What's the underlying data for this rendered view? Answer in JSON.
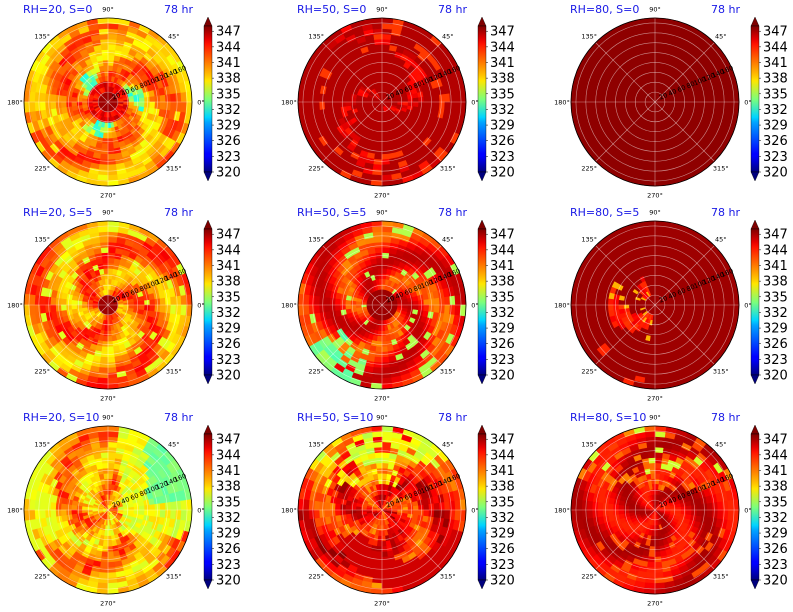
{
  "figure": {
    "layout": "3x3"
  },
  "chart_data": [
    {
      "type": "heatmap",
      "title_left": "RH=20, S=0",
      "title_right": "78 hr",
      "regime": "vortex",
      "angular_ticks": [
        "0°",
        "45°",
        "90°",
        "135°",
        "180°",
        "225°",
        "270°",
        "315°"
      ],
      "radial_ticks": [
        "20",
        "40",
        "60",
        "80",
        "100",
        "120",
        "140",
        "160"
      ],
      "colorbar": {
        "ticks": [
          "320",
          "323",
          "326",
          "329",
          "332",
          "335",
          "338",
          "341",
          "344",
          "347"
        ],
        "vmin": 320,
        "vmax": 348,
        "colormap": "jet",
        "extend": "both"
      }
    },
    {
      "type": "heatmap",
      "title_left": "RH=50, S=0",
      "title_right": "78 hr",
      "regime": "saturated_low",
      "angular_ticks": [
        "0°",
        "45°",
        "90°",
        "135°",
        "180°",
        "225°",
        "270°",
        "315°"
      ],
      "radial_ticks": [
        "20",
        "40",
        "60",
        "80",
        "100",
        "120",
        "140",
        "160"
      ],
      "colorbar": {
        "ticks": [
          "320",
          "323",
          "326",
          "329",
          "332",
          "335",
          "338",
          "341",
          "344",
          "347"
        ],
        "vmin": 320,
        "vmax": 348,
        "colormap": "jet",
        "extend": "both"
      }
    },
    {
      "type": "heatmap",
      "title_left": "RH=80, S=0",
      "title_right": "78 hr",
      "regime": "saturated",
      "angular_ticks": [
        "0°",
        "45°",
        "90°",
        "135°",
        "180°",
        "225°",
        "270°",
        "315°"
      ],
      "radial_ticks": [
        "20",
        "40",
        "60",
        "80",
        "100",
        "120",
        "140",
        "160"
      ],
      "colorbar": {
        "ticks": [
          "320",
          "323",
          "326",
          "329",
          "332",
          "335",
          "338",
          "341",
          "344",
          "347"
        ],
        "vmin": 320,
        "vmax": 348,
        "colormap": "jet",
        "extend": "both"
      }
    },
    {
      "type": "heatmap",
      "title_left": "RH=20, S=5",
      "title_right": "78 hr",
      "regime": "vortex_warm",
      "angular_ticks": [
        "0°",
        "45°",
        "90°",
        "135°",
        "180°",
        "225°",
        "270°",
        "315°"
      ],
      "radial_ticks": [
        "20",
        "40",
        "60",
        "80",
        "100",
        "120",
        "140",
        "160"
      ],
      "colorbar": {
        "ticks": [
          "320",
          "323",
          "326",
          "329",
          "332",
          "335",
          "338",
          "341",
          "344",
          "347"
        ],
        "vmin": 320,
        "vmax": 348,
        "colormap": "jet",
        "extend": "both"
      }
    },
    {
      "type": "heatmap",
      "title_left": "RH=50, S=5",
      "title_right": "78 hr",
      "regime": "vortex_mixed",
      "angular_ticks": [
        "0°",
        "45°",
        "90°",
        "135°",
        "180°",
        "225°",
        "270°",
        "315°"
      ],
      "radial_ticks": [
        "20",
        "40",
        "60",
        "80",
        "100",
        "120",
        "140",
        "160"
      ],
      "colorbar": {
        "ticks": [
          "320",
          "323",
          "326",
          "329",
          "332",
          "335",
          "338",
          "341",
          "344",
          "347"
        ],
        "vmin": 320,
        "vmax": 348,
        "colormap": "jet",
        "extend": "both"
      }
    },
    {
      "type": "heatmap",
      "title_left": "RH=80, S=5",
      "title_right": "78 hr",
      "regime": "saturated_patch",
      "angular_ticks": [
        "0°",
        "45°",
        "90°",
        "135°",
        "180°",
        "225°",
        "270°",
        "315°"
      ],
      "radial_ticks": [
        "20",
        "40",
        "60",
        "80",
        "100",
        "120",
        "140",
        "160"
      ],
      "colorbar": {
        "ticks": [
          "320",
          "323",
          "326",
          "329",
          "332",
          "335",
          "338",
          "341",
          "344",
          "347"
        ],
        "vmin": 320,
        "vmax": 348,
        "colormap": "jet",
        "extend": "both"
      }
    },
    {
      "type": "heatmap",
      "title_left": "RH=20, S=10",
      "title_right": "78 hr",
      "regime": "cool_sheared",
      "angular_ticks": [
        "0°",
        "45°",
        "90°",
        "135°",
        "180°",
        "225°",
        "270°",
        "315°"
      ],
      "radial_ticks": [
        "20",
        "40",
        "60",
        "80",
        "100",
        "120",
        "140",
        "160"
      ],
      "colorbar": {
        "ticks": [
          "320",
          "323",
          "326",
          "329",
          "332",
          "335",
          "338",
          "341",
          "344",
          "347"
        ],
        "vmin": 320,
        "vmax": 348,
        "colormap": "jet",
        "extend": "both"
      }
    },
    {
      "type": "heatmap",
      "title_left": "RH=50, S=10",
      "title_right": "78 hr",
      "regime": "sheared_mixed",
      "angular_ticks": [
        "0°",
        "45°",
        "90°",
        "135°",
        "180°",
        "225°",
        "270°",
        "315°"
      ],
      "radial_ticks": [
        "20",
        "40",
        "60",
        "80",
        "100",
        "120",
        "140",
        "160"
      ],
      "colorbar": {
        "ticks": [
          "320",
          "323",
          "326",
          "329",
          "332",
          "335",
          "338",
          "341",
          "344",
          "347"
        ],
        "vmin": 320,
        "vmax": 348,
        "colormap": "jet",
        "extend": "both"
      }
    },
    {
      "type": "heatmap",
      "title_left": "RH=80, S=10",
      "title_right": "78 hr",
      "regime": "sheared_warm",
      "angular_ticks": [
        "0°",
        "45°",
        "90°",
        "135°",
        "180°",
        "225°",
        "270°",
        "315°"
      ],
      "radial_ticks": [
        "20",
        "40",
        "60",
        "80",
        "100",
        "120",
        "140",
        "160"
      ],
      "colorbar": {
        "ticks": [
          "320",
          "323",
          "326",
          "329",
          "332",
          "335",
          "338",
          "341",
          "344",
          "347"
        ],
        "vmin": 320,
        "vmax": 348,
        "colormap": "jet",
        "extend": "both"
      }
    }
  ]
}
